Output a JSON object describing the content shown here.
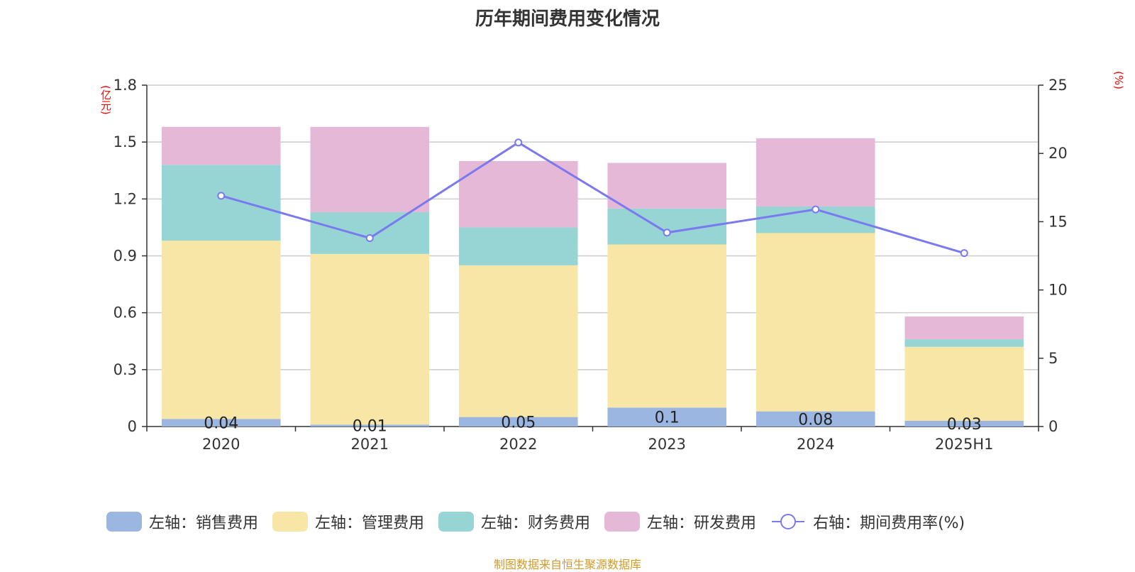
{
  "title": "历年期间费用变化情况",
  "left_unit": "(亿元)",
  "right_unit": "(%)",
  "source": "制图数据来自恒生聚源数据库",
  "colors": {
    "sales": "#9bb6e0",
    "admin": "#f8e6a6",
    "finance": "#97d4d4",
    "rd": "#e6b8d8",
    "rate": "#7b79f0"
  },
  "legend": [
    {
      "label": "左轴：销售费用",
      "key": "sales"
    },
    {
      "label": "左轴：管理费用",
      "key": "admin"
    },
    {
      "label": "左轴：财务费用",
      "key": "finance"
    },
    {
      "label": "左轴：研发费用",
      "key": "rd"
    },
    {
      "label": "右轴：期间费用率(%)",
      "key": "rate"
    }
  ],
  "chart_data": {
    "type": "bar",
    "stacked": true,
    "categories": [
      "2020",
      "2021",
      "2022",
      "2023",
      "2024",
      "2025H1"
    ],
    "series": [
      {
        "name": "左轴：销售费用",
        "key": "sales",
        "values": [
          0.04,
          0.01,
          0.05,
          0.1,
          0.08,
          0.03
        ],
        "labels": [
          "0.04",
          "0.01",
          "0.05",
          "0.1",
          "0.08",
          "0.03"
        ]
      },
      {
        "name": "左轴：管理费用",
        "key": "admin",
        "values": [
          0.94,
          0.9,
          0.8,
          0.86,
          0.94,
          0.39
        ]
      },
      {
        "name": "左轴：财务费用",
        "key": "finance",
        "values": [
          0.4,
          0.22,
          0.2,
          0.19,
          0.14,
          0.04
        ]
      },
      {
        "name": "左轴：研发费用",
        "key": "rd",
        "values": [
          0.2,
          0.45,
          0.35,
          0.24,
          0.36,
          0.12
        ]
      }
    ],
    "line_series": {
      "name": "右轴：期间费用率(%)",
      "key": "rate",
      "values": [
        16.9,
        13.8,
        20.8,
        14.2,
        15.9,
        12.7
      ]
    },
    "y_left": {
      "min": 0,
      "max": 1.8,
      "ticks": [
        "0",
        "0.3",
        "0.6",
        "0.9",
        "1.2",
        "1.5",
        "1.8"
      ]
    },
    "y_right": {
      "min": 0,
      "max": 25,
      "ticks": [
        "0",
        "5",
        "10",
        "15",
        "20",
        "25"
      ]
    },
    "grid": true,
    "legend_position": "bottom"
  }
}
